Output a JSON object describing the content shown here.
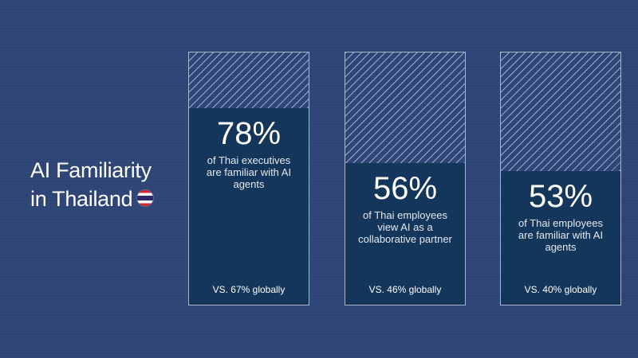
{
  "title": {
    "line1": "AI Familiarity",
    "line2": "in Thailand"
  },
  "icons": {
    "flag": "thailand-flag-icon"
  },
  "colors": {
    "background": "#2d4476",
    "card_fill": "#13365a"
  },
  "stats": [
    {
      "value_pct": 78,
      "value": "78%",
      "description": "of Thai executives are familiar with AI agents",
      "global": "VS. 67% globally"
    },
    {
      "value_pct": 56,
      "value": "56%",
      "description": "of Thai employees view AI as a collaborative partner",
      "global": "VS. 46% globally"
    },
    {
      "value_pct": 53,
      "value": "53%",
      "description": "of Thai employees are familiar with AI agents",
      "global": "VS. 40% globally"
    }
  ]
}
